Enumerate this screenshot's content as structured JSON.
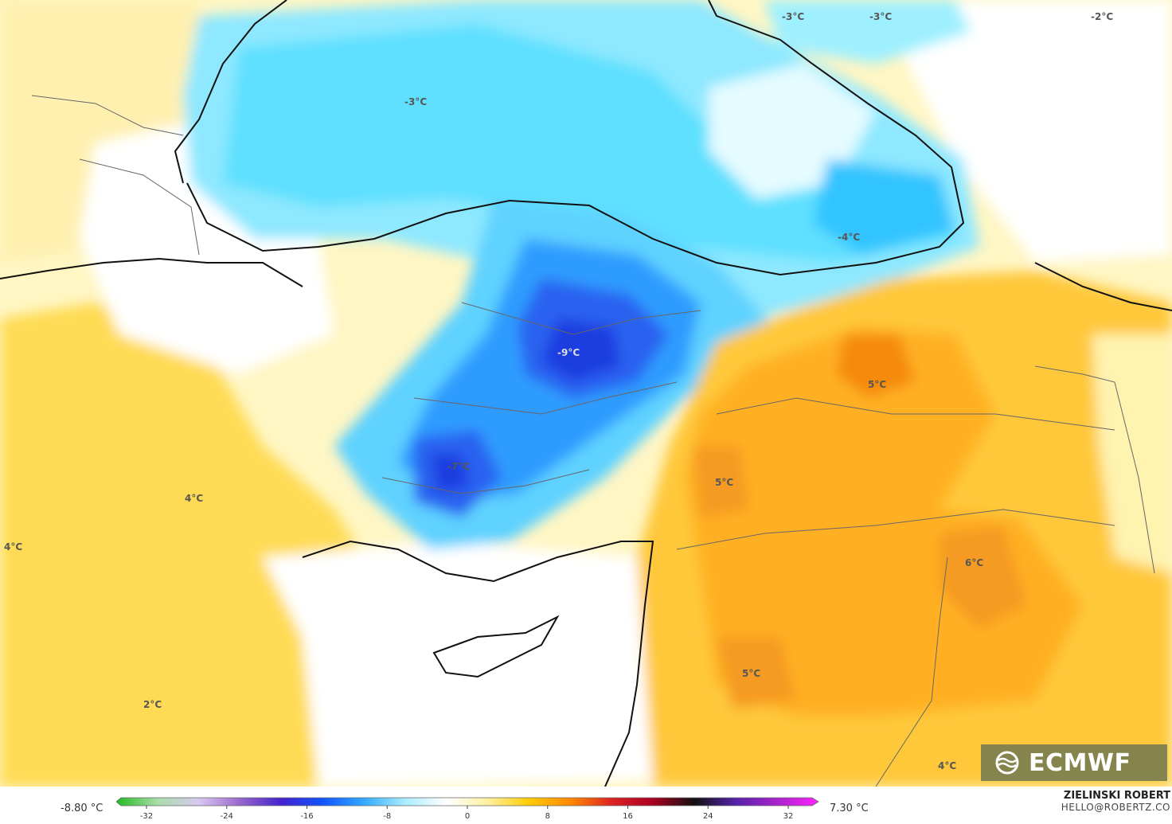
{
  "map": {
    "temperature_labels": [
      {
        "text": "-3°C",
        "tone": "cold"
      },
      {
        "text": "-3°C",
        "tone": "cold"
      },
      {
        "text": "-3°C",
        "tone": "cold"
      },
      {
        "text": "-2°C",
        "tone": "cold"
      },
      {
        "text": "-4°C",
        "tone": "cold"
      },
      {
        "text": "-9°C",
        "tone": "cold"
      },
      {
        "text": "-7°C",
        "tone": "cold"
      },
      {
        "text": "5°C",
        "tone": "warm"
      },
      {
        "text": "5°C",
        "tone": "warm"
      },
      {
        "text": "6°C",
        "tone": "warm"
      },
      {
        "text": "5°C",
        "tone": "warm"
      },
      {
        "text": "4°C",
        "tone": "warm"
      },
      {
        "text": "4°C",
        "tone": "warm"
      },
      {
        "text": "4°C",
        "tone": "warm"
      },
      {
        "text": "2°C",
        "tone": "warm"
      }
    ]
  },
  "legend": {
    "min_label": "-8.80 °C",
    "max_label": "7.30 °C",
    "ticks": [
      "-32",
      "-24",
      "-16",
      "-8",
      "0",
      "8",
      "16",
      "24",
      "32"
    ],
    "gradient_colors": [
      "#22bb22",
      "#aaddaa",
      "#d8c8f0",
      "#9966cc",
      "#4422cc",
      "#1155ff",
      "#33aaff",
      "#aaeeff",
      "#ffffff",
      "#fff0a0",
      "#ffcc00",
      "#ff8800",
      "#dd2222",
      "#aa0022",
      "#111111",
      "#5522aa",
      "#aa22cc",
      "#ff22ff"
    ]
  },
  "credits": {
    "author": "ZIELINSKI ROBERT",
    "email": "HELLO@ROBERTZ.CO",
    "logo": "ECMWF"
  },
  "colors": {
    "sea_cold": "#5ee0ff",
    "deep_cold": "#2f6dfa",
    "coldest": "#1a3ce0",
    "light_cold": "#b8f0ff",
    "neutral": "#ffffff",
    "pale_warm": "#fff3b0",
    "warm": "#ffd24a",
    "warmer": "#ffb020",
    "hot": "#f59a20"
  }
}
